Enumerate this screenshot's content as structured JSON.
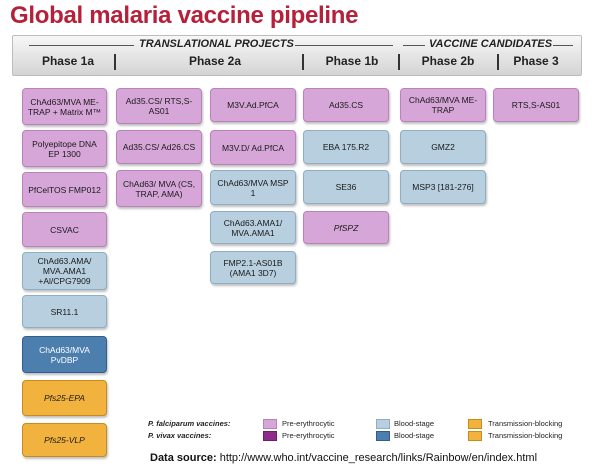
{
  "title": "Global malaria vaccine pipeline",
  "groups": {
    "translational": "TRANSLATIONAL PROJECTS",
    "candidates": "VACCINE CANDIDATES"
  },
  "phases": [
    "Phase 1a",
    "Phase 2a",
    "Phase 1b",
    "Phase 2b",
    "Phase 3"
  ],
  "colors": {
    "title": "#b5203a",
    "pf_pre_erythrocytic": "#d7a6d8",
    "pf_blood_stage": "#b7cfde",
    "pv_pre_erythrocytic": "#8e2c8a",
    "pv_blood_stage": "#4d7fae",
    "transmission_blocking": "#f2b23e"
  },
  "vaccines": [
    {
      "phase": "Phase 1a",
      "label": "ChAd63/MVA ME-TRAP + Matrix M™",
      "stage": "pf-pre"
    },
    {
      "phase": "Phase 1a",
      "label": "Polyepitope DNA EP 1300",
      "stage": "pf-pre"
    },
    {
      "phase": "Phase 1a",
      "label": "PfCelTOS FMP012",
      "stage": "pf-pre"
    },
    {
      "phase": "Phase 1a",
      "label": "CSVAC",
      "stage": "pf-pre"
    },
    {
      "phase": "Phase 1a",
      "label": "ChAd63.AMA/ MVA.AMA1 +Al/CPG7909",
      "stage": "pf-bld"
    },
    {
      "phase": "Phase 1a",
      "label": "SR11.1",
      "stage": "pf-bld"
    },
    {
      "phase": "Phase 1a",
      "label": "ChAd63/MVA PvDBP",
      "stage": "pv-bld"
    },
    {
      "phase": "Phase 1a",
      "label": "Pfs25-EPA",
      "stage": "pf-trn"
    },
    {
      "phase": "Phase 1a",
      "label": "Pfs25-VLP",
      "stage": "pf-trn"
    },
    {
      "phase": "Phase 2a",
      "label": "Ad35.CS/ RTS,S-AS01",
      "stage": "pf-pre"
    },
    {
      "phase": "Phase 2a",
      "label": "Ad35.CS/ Ad26.CS",
      "stage": "pf-pre"
    },
    {
      "phase": "Phase 2a",
      "label": "ChAd63/ MVA (CS, TRAP, AMA)",
      "stage": "pf-pre"
    },
    {
      "phase": "Phase 2a",
      "label": "M3V.Ad.PfCA",
      "stage": "pf-pre"
    },
    {
      "phase": "Phase 2a",
      "label": "M3V.D/ Ad.PfCA",
      "stage": "pf-pre"
    },
    {
      "phase": "Phase 2a",
      "label": "ChAd63/MVA MSP 1",
      "stage": "pf-bld"
    },
    {
      "phase": "Phase 2a",
      "label": "ChAd63.AMA1/ MVA.AMA1",
      "stage": "pf-bld"
    },
    {
      "phase": "Phase 2a",
      "label": "FMP2.1-AS01B (AMA1 3D7)",
      "stage": "pf-bld"
    },
    {
      "phase": "Phase 1b",
      "label": "Ad35.CS",
      "stage": "pf-pre"
    },
    {
      "phase": "Phase 1b",
      "label": "EBA 175.R2",
      "stage": "pf-bld"
    },
    {
      "phase": "Phase 1b",
      "label": "SE36",
      "stage": "pf-bld"
    },
    {
      "phase": "Phase 1b",
      "label": "PfSPZ",
      "stage": "pf-pre"
    },
    {
      "phase": "Phase 2b",
      "label": "ChAd63/MVA ME-TRAP",
      "stage": "pf-pre"
    },
    {
      "phase": "Phase 2b",
      "label": "GMZ2",
      "stage": "pf-bld"
    },
    {
      "phase": "Phase 2b",
      "label": "MSP3 [181-276]",
      "stage": "pf-bld"
    },
    {
      "phase": "Phase 3",
      "label": "RTS,S-AS01",
      "stage": "pf-pre"
    }
  ],
  "legend": {
    "falciparum": "P. falciparum vaccines:",
    "vivax": "P. vivax vaccines:",
    "pre": "Pre-erythrocytic",
    "blood": "Blood-stage",
    "transmission": "Transmission-blocking"
  },
  "source": {
    "label": "Data source:",
    "url": "http://www.who.int/vaccine_research/links/Rainbow/en/index.html"
  }
}
